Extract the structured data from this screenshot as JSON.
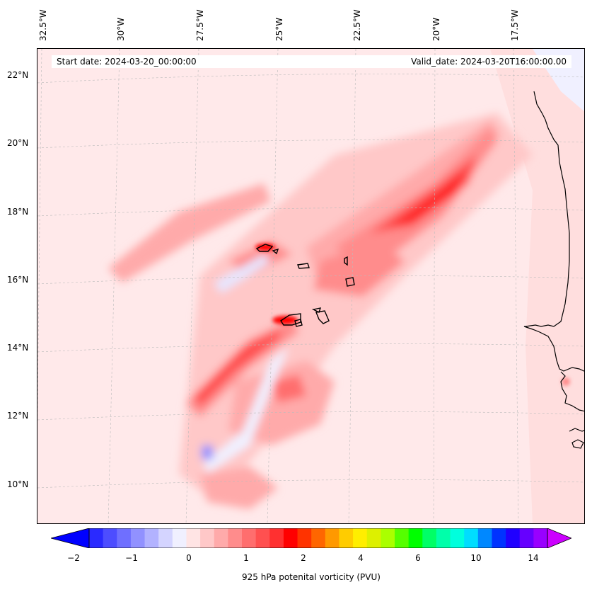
{
  "header": {
    "start_date": "Start date: 2024-03-20_00:00:00",
    "valid_date": "Valid_date: 2024-03-20T16:00:00.00"
  },
  "axes": {
    "longitude_labels": [
      "32.5°W",
      "30°W",
      "27.5°W",
      "25°W",
      "22.5°W",
      "20°W",
      "17.5°W"
    ],
    "latitude_labels": [
      "22°N",
      "20°N",
      "18°N",
      "16°N",
      "14°N",
      "12°N",
      "10°N"
    ]
  },
  "colorbar": {
    "label": "925 hPa potenital vorticity (PVU)",
    "ticks": [
      "−2",
      "−1",
      "0",
      "1",
      "2",
      "4",
      "6",
      "10",
      "14"
    ],
    "colors": [
      "#0000ff",
      "#2a2aff",
      "#4d4dff",
      "#6f6fff",
      "#9191ff",
      "#b2b2ff",
      "#d4d4ff",
      "#f0f0ff",
      "#ffe4e4",
      "#ffc8c8",
      "#ffaaaa",
      "#ff8c8c",
      "#ff6e6e",
      "#ff5050",
      "#ff3030",
      "#ff0000",
      "#ff3300",
      "#ff6600",
      "#ff9900",
      "#ffcc00",
      "#ffee00",
      "#ddf000",
      "#aaff00",
      "#55ff00",
      "#00ff00",
      "#00ff66",
      "#00ffaa",
      "#00ffdd",
      "#00ddff",
      "#0088ff",
      "#0033ff",
      "#2000ff",
      "#6600ff",
      "#9900ff",
      "#cc00ff"
    ]
  },
  "map": {
    "background_color": "#ffe9ea",
    "features": [
      "cape-verde-islands",
      "west-africa-coastline"
    ]
  }
}
